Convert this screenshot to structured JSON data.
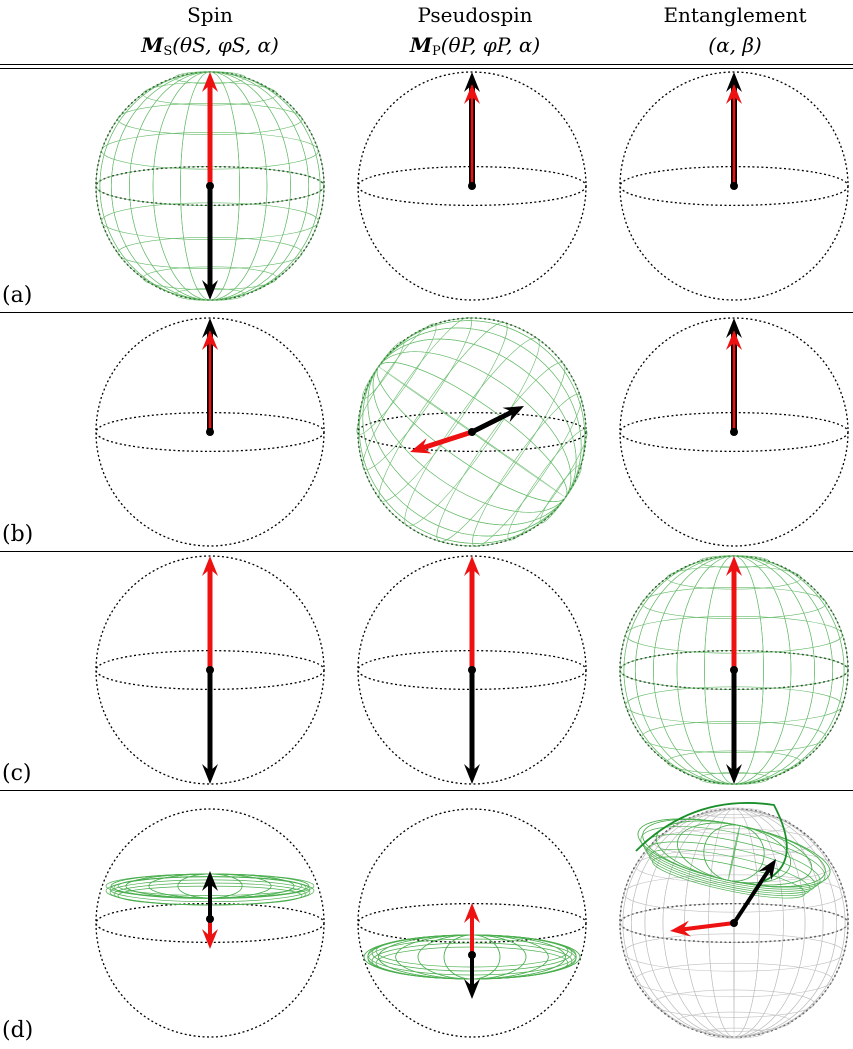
{
  "columns": [
    {
      "title": "Spin",
      "vector_symbol": "M",
      "vector_subscript": "S",
      "params": "(θS, φS, α)"
    },
    {
      "title": "Pseudospin",
      "vector_symbol": "M",
      "vector_subscript": "P",
      "params": "(θP, φP, α)"
    },
    {
      "title": "Entanglement",
      "params": "(α, β)"
    }
  ],
  "rows": [
    {
      "label": "(a)"
    },
    {
      "label": "(b)"
    },
    {
      "label": "(c)"
    },
    {
      "label": "(d)"
    }
  ],
  "colors": {
    "red_vector": "#ee1111",
    "black_vector": "#000000",
    "mesh_green": "#4caf50",
    "mesh_grey": "#b5b5b5"
  }
}
